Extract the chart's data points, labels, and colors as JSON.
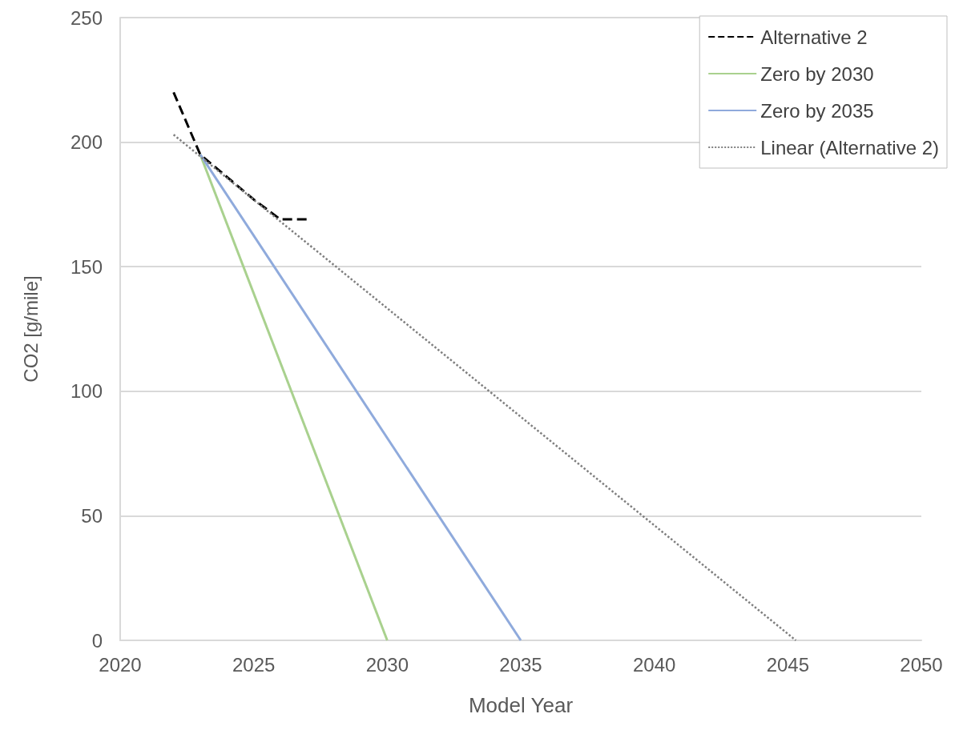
{
  "chart_data": {
    "type": "line",
    "xlabel": "Model Year",
    "ylabel": "CO2 [g/mile]",
    "xlim": [
      2020,
      2050
    ],
    "xticks": [
      2020,
      2025,
      2030,
      2035,
      2040,
      2045,
      2050
    ],
    "ylim": [
      0,
      250
    ],
    "yticks": [
      0,
      50,
      100,
      150,
      200,
      250
    ],
    "grid": "y",
    "legend": "top right",
    "marker": "none",
    "series": [
      {
        "name": "Alternative 2",
        "color": "#000000",
        "line_style": "dashed",
        "x": [
          2022,
          2023,
          2024,
          2025,
          2026,
          2027
        ],
        "values": [
          220,
          195,
          186,
          177,
          169,
          169
        ]
      },
      {
        "name": "Zero by 2030",
        "color": "#a9d18e",
        "line_style": "solid",
        "x": [
          2023,
          2030
        ],
        "values": [
          195,
          0
        ]
      },
      {
        "name": "Zero by 2035",
        "color": "#8faadc",
        "line_style": "solid",
        "x": [
          2023,
          2035
        ],
        "values": [
          195,
          0
        ]
      },
      {
        "name": "Linear (Alternative 2)",
        "color": "#7f7f7f",
        "line_style": "dotted",
        "x": [
          2022,
          2045.3
        ],
        "values": [
          203,
          0
        ]
      }
    ]
  }
}
